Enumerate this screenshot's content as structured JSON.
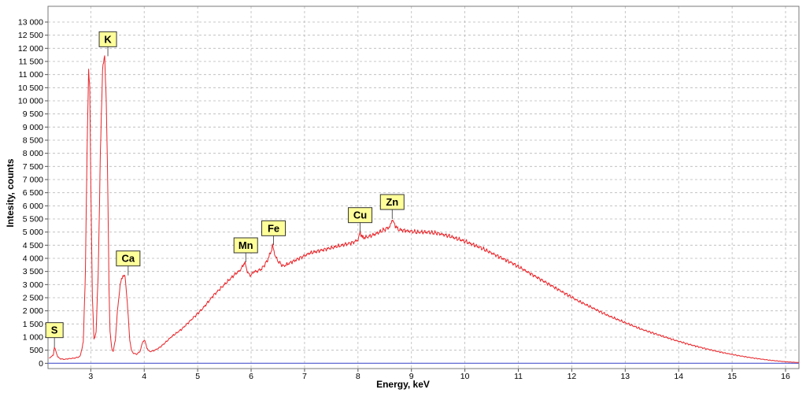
{
  "chart_data": {
    "type": "line",
    "title": "",
    "xlabel": "Energy, keV",
    "ylabel": "Intesity, counts",
    "xlim": [
      2.2,
      16.25
    ],
    "ylim": [
      -200,
      13600
    ],
    "grid": true,
    "x_ticks": [
      "3",
      "4",
      "5",
      "6",
      "7",
      "8",
      "9",
      "10",
      "11",
      "12",
      "13",
      "14",
      "15",
      "16"
    ],
    "y_ticks": [
      "0",
      "500",
      "1 000",
      "1 500",
      "2 000",
      "2 500",
      "3 000",
      "3 500",
      "4 000",
      "4 500",
      "5 000",
      "5 500",
      "6 000",
      "6 500",
      "7 000",
      "7 500",
      "8 000",
      "8 500",
      "9 000",
      "9 500",
      "10 000",
      "10 500",
      "11 000",
      "11 500",
      "12 000",
      "12 500",
      "13 000"
    ],
    "colors": {
      "spectrum": "#e8262b",
      "baseline": "#6b74d6",
      "label_bg": "#ffff9a"
    },
    "series": [
      {
        "x": [
          2.22,
          2.26,
          2.3,
          2.32,
          2.34,
          2.38,
          2.42,
          2.5,
          2.6,
          2.7,
          2.8,
          2.86,
          2.9,
          2.93,
          2.96,
          2.98,
          3.0,
          3.03,
          3.06,
          3.1,
          3.14,
          3.18,
          3.22,
          3.26,
          3.29,
          3.32,
          3.34,
          3.36,
          3.39,
          3.42,
          3.46,
          3.5,
          3.55,
          3.6,
          3.64,
          3.67,
          3.7,
          3.73,
          3.76,
          3.8,
          3.86,
          3.92,
          3.97,
          4.0,
          4.02,
          4.05,
          4.08,
          4.12,
          4.2,
          4.3,
          4.4,
          4.5,
          4.7,
          4.9,
          5.1,
          5.3,
          5.5,
          5.7,
          5.8,
          5.88,
          5.9,
          5.95,
          6.0,
          6.05,
          6.1,
          6.2,
          6.3,
          6.38,
          6.4,
          6.45,
          6.5,
          6.55,
          6.6,
          6.7,
          6.9,
          7.1,
          7.3,
          7.5,
          7.7,
          7.9,
          8.0,
          8.04,
          8.08,
          8.15,
          8.3,
          8.5,
          8.6,
          8.64,
          8.68,
          8.75,
          8.9,
          9.1,
          9.3,
          9.5,
          9.7,
          10.0,
          10.3,
          10.6,
          10.9,
          11.2,
          11.5,
          11.8,
          12.1,
          12.4,
          12.7,
          13.0,
          13.3,
          13.6,
          13.9,
          14.2,
          14.5,
          14.8,
          15.1,
          15.4,
          15.7,
          16.0,
          16.25
        ],
        "y": [
          200,
          250,
          320,
          620,
          500,
          260,
          180,
          150,
          180,
          200,
          260,
          800,
          3500,
          8000,
          11200,
          10500,
          7000,
          2500,
          900,
          1200,
          3500,
          8000,
          11200,
          11700,
          10000,
          6500,
          3000,
          1200,
          600,
          450,
          900,
          2000,
          3000,
          3350,
          3300,
          2700,
          1800,
          900,
          500,
          380,
          350,
          450,
          800,
          900,
          800,
          600,
          480,
          450,
          500,
          620,
          800,
          1000,
          1300,
          1700,
          2100,
          2600,
          3000,
          3400,
          3550,
          3850,
          3700,
          3400,
          3350,
          3500,
          3500,
          3600,
          3900,
          4300,
          4500,
          4100,
          3900,
          3800,
          3700,
          3800,
          4000,
          4200,
          4300,
          4400,
          4500,
          4600,
          4700,
          5000,
          4800,
          4800,
          4900,
          5100,
          5200,
          5500,
          5300,
          5100,
          5050,
          5000,
          5000,
          4950,
          4850,
          4650,
          4400,
          4100,
          3800,
          3450,
          3100,
          2750,
          2400,
          2100,
          1800,
          1550,
          1300,
          1100,
          900,
          720,
          560,
          420,
          300,
          200,
          120,
          60,
          30
        ]
      }
    ],
    "peak_labels": [
      {
        "text": "S",
        "x": 2.32,
        "y": 620
      },
      {
        "text": "K",
        "x": 3.32,
        "y": 11700
      },
      {
        "text": "Ca",
        "x": 3.7,
        "y": 3350
      },
      {
        "text": "Mn",
        "x": 5.9,
        "y": 3850
      },
      {
        "text": "Fe",
        "x": 6.42,
        "y": 4500
      },
      {
        "text": "Cu",
        "x": 8.04,
        "y": 5000
      },
      {
        "text": "Zn",
        "x": 8.64,
        "y": 5500
      }
    ]
  }
}
